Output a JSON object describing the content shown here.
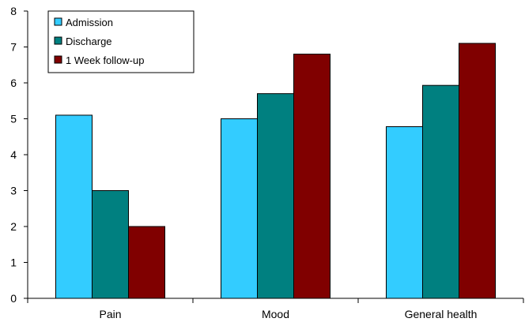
{
  "chart_data": {
    "type": "bar",
    "title": "",
    "xlabel": "",
    "ylabel": "",
    "categories": [
      "Pain",
      "Mood",
      "General health"
    ],
    "series": [
      {
        "name": "Admission",
        "values": [
          5.1,
          5.0,
          4.78
        ],
        "color": "#33ccff"
      },
      {
        "name": "Discharge",
        "values": [
          3.0,
          5.7,
          5.93
        ],
        "color": "#008080"
      },
      {
        "name": "1 Week follow-up",
        "values": [
          2.0,
          6.8,
          7.1
        ],
        "color": "#800000"
      }
    ],
    "ylim": [
      0,
      8
    ],
    "yticks": [
      0,
      1,
      2,
      3,
      4,
      5,
      6,
      7,
      8
    ],
    "grid": false,
    "legend_position": "top-left"
  }
}
